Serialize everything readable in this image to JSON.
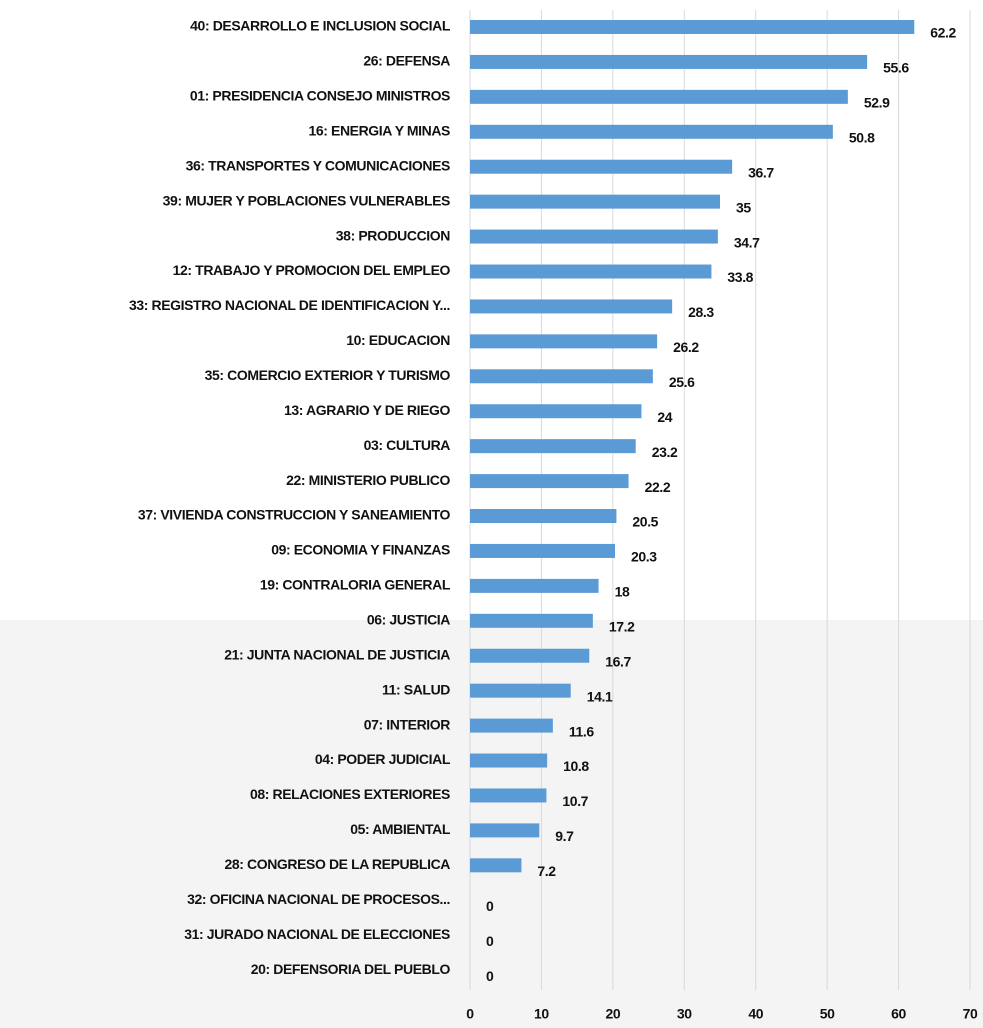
{
  "chart_data": {
    "type": "bar",
    "orientation": "horizontal",
    "categories": [
      "40: DESARROLLO E INCLUSION SOCIAL",
      "26: DEFENSA",
      "01: PRESIDENCIA CONSEJO MINISTROS",
      "16: ENERGIA Y MINAS",
      "36: TRANSPORTES Y COMUNICACIONES",
      "39: MUJER Y POBLACIONES VULNERABLES",
      "38: PRODUCCION",
      "12: TRABAJO Y PROMOCION DEL EMPLEO",
      "33: REGISTRO NACIONAL DE IDENTIFICACION Y...",
      "10: EDUCACION",
      "35: COMERCIO EXTERIOR Y TURISMO",
      "13: AGRARIO Y DE RIEGO",
      "03: CULTURA",
      "22: MINISTERIO PUBLICO",
      "37: VIVIENDA CONSTRUCCION Y SANEAMIENTO",
      "09: ECONOMIA Y FINANZAS",
      "19: CONTRALORIA GENERAL",
      "06: JUSTICIA",
      "21: JUNTA NACIONAL DE JUSTICIA",
      "11: SALUD",
      "07: INTERIOR",
      "04: PODER JUDICIAL",
      "08: RELACIONES EXTERIORES",
      "05: AMBIENTAL",
      "28: CONGRESO DE LA REPUBLICA",
      "32: OFICINA NACIONAL DE PROCESOS...",
      "31: JURADO NACIONAL DE ELECCIONES",
      "20: DEFENSORIA DEL PUEBLO"
    ],
    "values": [
      62.2,
      55.6,
      52.9,
      50.8,
      36.7,
      35,
      34.7,
      33.8,
      28.3,
      26.2,
      25.6,
      24,
      23.2,
      22.2,
      20.5,
      20.3,
      18,
      17.2,
      16.7,
      14.1,
      11.6,
      10.8,
      10.7,
      9.7,
      7.2,
      0,
      0,
      0
    ],
    "color": "#5b9bd5",
    "xlim": [
      0,
      70
    ],
    "xticks": [
      0,
      10,
      20,
      30,
      40,
      50,
      60,
      70
    ],
    "grid": true,
    "data_labels": true
  }
}
